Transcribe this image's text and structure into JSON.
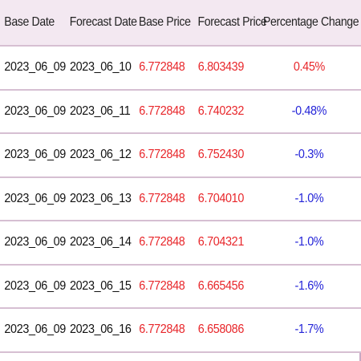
{
  "table": {
    "headers": [
      "Base Date",
      "Forecast Date",
      "Base Price",
      "Forecast Price",
      "Percentage Change"
    ],
    "rows": [
      {
        "base_date": "2023_06_09",
        "forecast_date": "2023_06_10",
        "base_price": "6.772848",
        "forecast_price": "6.803439",
        "change": "0.45%",
        "direction": "up"
      },
      {
        "base_date": "2023_06_09",
        "forecast_date": "2023_06_11",
        "base_price": "6.772848",
        "forecast_price": "6.740232",
        "change": "-0.48%",
        "direction": "down"
      },
      {
        "base_date": "2023_06_09",
        "forecast_date": "2023_06_12",
        "base_price": "6.772848",
        "forecast_price": "6.752430",
        "change": "-0.3%",
        "direction": "down"
      },
      {
        "base_date": "2023_06_09",
        "forecast_date": "2023_06_13",
        "base_price": "6.772848",
        "forecast_price": "6.704010",
        "change": "-1.0%",
        "direction": "down"
      },
      {
        "base_date": "2023_06_09",
        "forecast_date": "2023_06_14",
        "base_price": "6.772848",
        "forecast_price": "6.704321",
        "change": "-1.0%",
        "direction": "down"
      },
      {
        "base_date": "2023_06_09",
        "forecast_date": "2023_06_15",
        "base_price": "6.772848",
        "forecast_price": "6.665456",
        "change": "-1.6%",
        "direction": "down"
      },
      {
        "base_date": "2023_06_09",
        "forecast_date": "2023_06_16",
        "base_price": "6.772848",
        "forecast_price": "6.658086",
        "change": "-1.7%",
        "direction": "down"
      }
    ]
  },
  "colors": {
    "header_background": "#f3e8f1",
    "price_red": "#e8262a",
    "negative_blue": "#2323d8",
    "border": "#d6bfd2"
  }
}
